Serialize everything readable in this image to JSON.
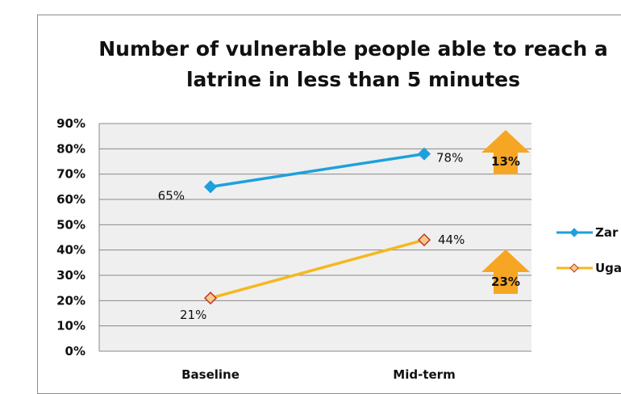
{
  "chart_data": {
    "type": "line",
    "title": "Number of vulnerable people able to reach a latrine in less than 5 minutes",
    "categories": [
      "Baseline",
      "Mid-term"
    ],
    "y_ticks": [
      "0%",
      "10%",
      "20%",
      "30%",
      "40%",
      "50%",
      "60%",
      "70%",
      "80%",
      "90%"
    ],
    "ylim": [
      0,
      90
    ],
    "grid": true,
    "legend_position": "right",
    "series": [
      {
        "name": "Zar",
        "values": [
          65,
          78
        ],
        "labels": [
          "65%",
          "78%"
        ],
        "color": "#1ea0dc",
        "marker": "diamond",
        "change_label": "13%"
      },
      {
        "name": "Uga",
        "values": [
          21,
          44
        ],
        "labels": [
          "21%",
          "44%"
        ],
        "color": "#f5b81e",
        "marker_fill": "#f7c98a",
        "marker_stroke": "#c0392b",
        "marker": "diamond",
        "change_label": "23%"
      }
    ],
    "arrow_color": "#f6a623"
  }
}
